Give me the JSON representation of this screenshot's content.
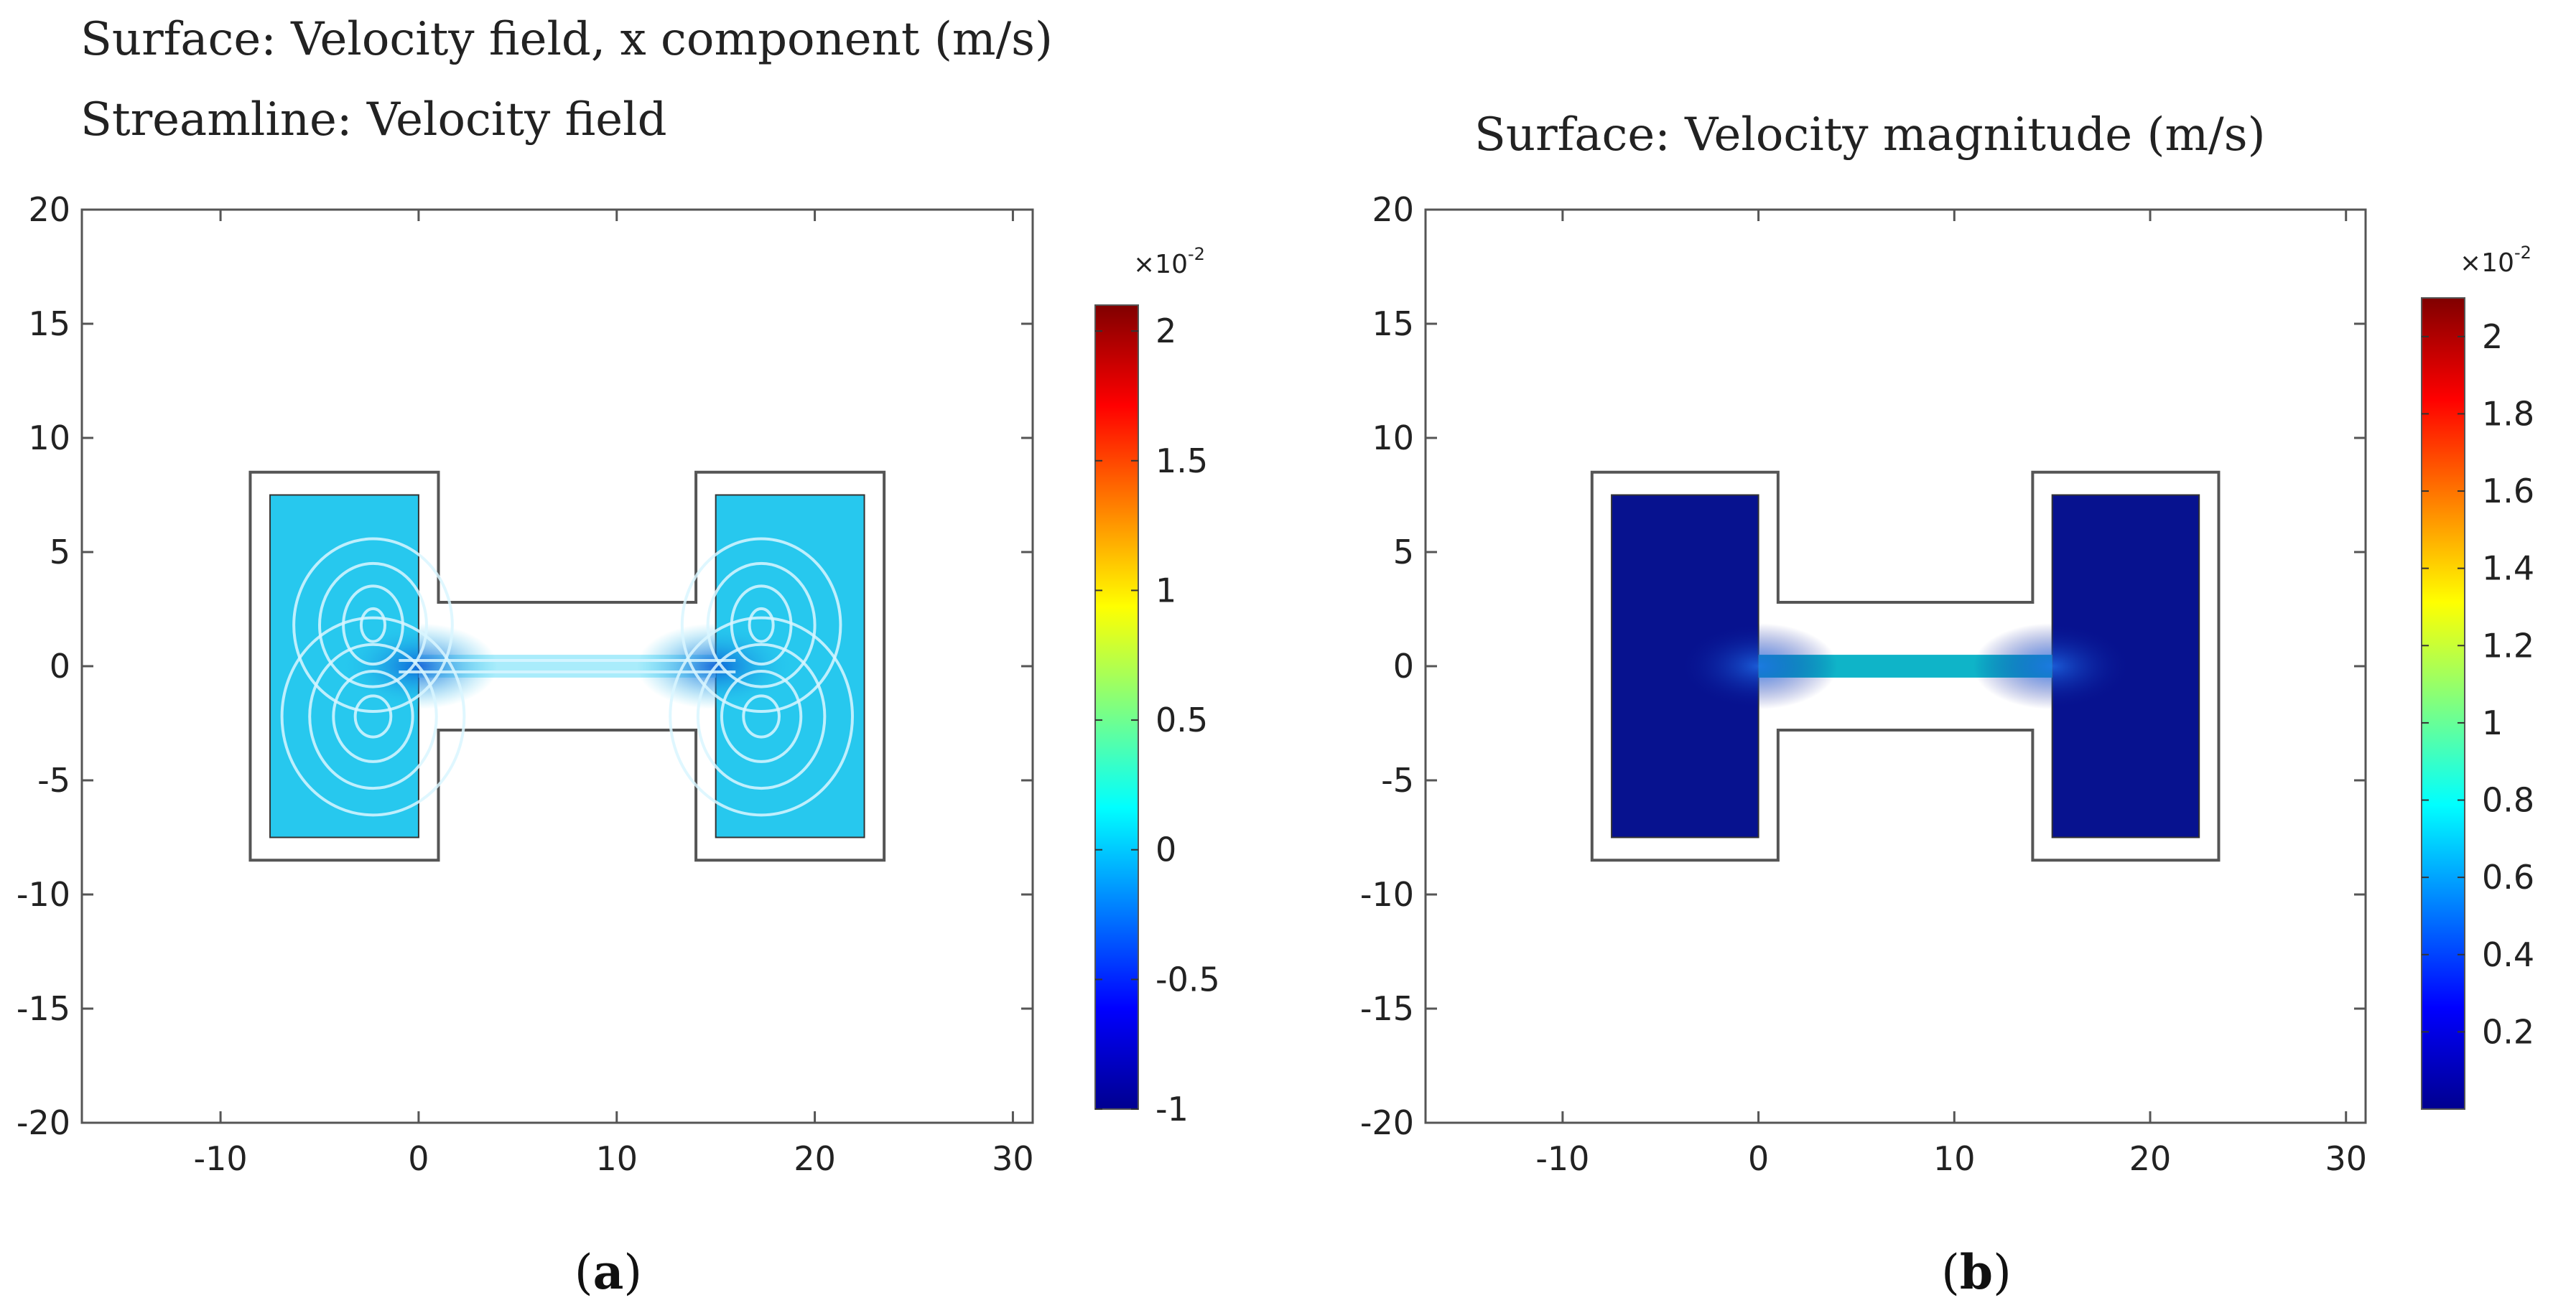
{
  "captions": {
    "a_open": "(",
    "a_letter": "a",
    "a_close": ")",
    "b_open": "(",
    "b_letter": "b",
    "b_close": ")"
  },
  "chart_data": [
    {
      "type": "heatmap",
      "title_lines": [
        "Surface: Velocity field, x component (m/s)",
        "Streamline: Velocity field"
      ],
      "field": "velocity x component",
      "xlim": [
        -17,
        31
      ],
      "ylim": [
        -20,
        20
      ],
      "xticks": [
        -10,
        0,
        10,
        20,
        30
      ],
      "yticks": [
        20,
        15,
        10,
        5,
        0,
        -5,
        -10,
        -15,
        -20
      ],
      "xtick_labels": [
        "-10",
        "0",
        "10",
        "20",
        "30"
      ],
      "ytick_labels": [
        "20",
        "15",
        "10",
        "5",
        "0",
        "-5",
        "-10",
        "-15",
        "-20"
      ],
      "geometry": {
        "left_reservoir": {
          "x": [
            -7.5,
            0
          ],
          "y": [
            -7.5,
            7.5
          ]
        },
        "right_reservoir": {
          "x": [
            15,
            22.5
          ],
          "y": [
            -7.5,
            7.5
          ]
        },
        "channel": {
          "x": [
            0,
            15
          ],
          "y": [
            -0.5,
            0.5
          ]
        },
        "wall_offset": 1
      },
      "colorbar": {
        "multiplier": "×10",
        "exponent": "-2",
        "range": [
          -1,
          2.1
        ],
        "ticks": [
          2,
          1.5,
          1,
          0.5,
          0,
          -0.5,
          -1
        ],
        "tick_labels": [
          "2",
          "1.5",
          "1",
          "0.5",
          "0",
          "-0.5",
          "-1"
        ]
      },
      "surface_colors": {
        "reservoir": "#27c8ee",
        "channel": "#a9ecfb"
      },
      "streamlines": "recirculation vortices in both reservoirs near channel entrances"
    },
    {
      "type": "heatmap",
      "title_lines": [
        "Surface: Velocity magnitude (m/s)"
      ],
      "field": "velocity magnitude",
      "xlim": [
        -17,
        31
      ],
      "ylim": [
        -20,
        20
      ],
      "xticks": [
        -10,
        0,
        10,
        20,
        30
      ],
      "yticks": [
        20,
        15,
        10,
        5,
        0,
        -5,
        -10,
        -15,
        -20
      ],
      "xtick_labels": [
        "-10",
        "0",
        "10",
        "20",
        "30"
      ],
      "ytick_labels": [
        "20",
        "15",
        "10",
        "5",
        "0",
        "-5",
        "-10",
        "-15",
        "-20"
      ],
      "geometry": {
        "left_reservoir": {
          "x": [
            -7.5,
            0
          ],
          "y": [
            -7.5,
            7.5
          ]
        },
        "right_reservoir": {
          "x": [
            15,
            22.5
          ],
          "y": [
            -7.5,
            7.5
          ]
        },
        "channel": {
          "x": [
            0,
            15
          ],
          "y": [
            -0.5,
            0.5
          ]
        },
        "wall_offset": 1
      },
      "colorbar": {
        "multiplier": "×10",
        "exponent": "-2",
        "range": [
          0,
          2.1
        ],
        "ticks": [
          2,
          1.8,
          1.6,
          1.4,
          1.2,
          1,
          0.8,
          0.6,
          0.4,
          0.2
        ],
        "tick_labels": [
          "2",
          "1.8",
          "1.6",
          "1.4",
          "1.2",
          "1",
          "0.8",
          "0.6",
          "0.4",
          "0.2"
        ]
      },
      "surface_colors": {
        "reservoir": "#07128f",
        "channel": "#0fb4c8"
      }
    }
  ]
}
